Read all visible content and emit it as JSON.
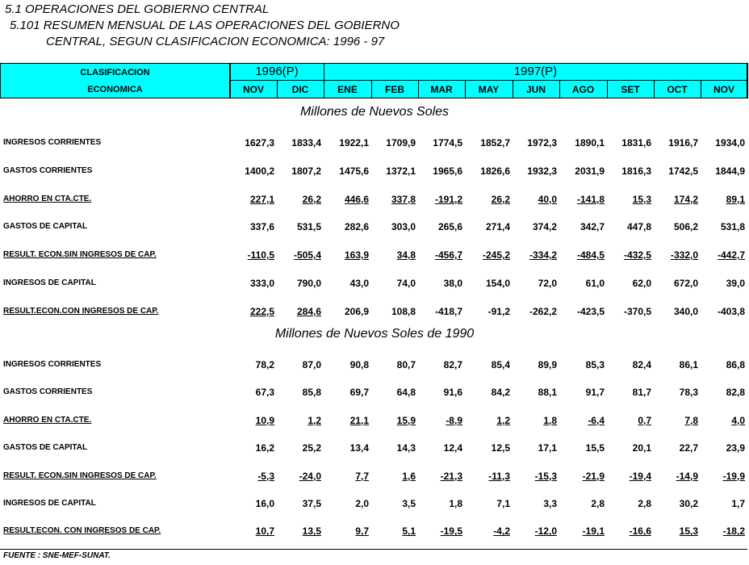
{
  "title": "5.1   OPERACIONES DEL GOBIERNO CENTRAL",
  "subtitle_lines": [
    "5.101 RESUMEN MENSUAL DE LAS OPERACIONES DEL GOBIERNO",
    "CENTRAL, SEGUN CLASIFICACION ECONOMICA: 1996 - 97"
  ],
  "table": {
    "header": {
      "label": [
        "CLASIFICACION",
        "ECONOMICA"
      ],
      "years": [
        {
          "label": "1996(P)",
          "months": [
            "NOV",
            "DIC"
          ]
        },
        {
          "label": "1997(P)",
          "months": [
            "ENE",
            "FEB",
            "MAR",
            "MAY",
            "JUN",
            "AGO",
            "SET",
            "OCT",
            "NOV"
          ]
        }
      ]
    },
    "sections": [
      {
        "title": "Millones de Nuevos Soles",
        "rows": [
          {
            "label": "INGRESOS CORRIENTES",
            "values": [
              "1627,3",
              "1833,4",
              "1922,1",
              "1709,9",
              "1774,5",
              "1852,7",
              "1972,3",
              "1890,1",
              "1831,6",
              "1916,7",
              "1934,0"
            ]
          },
          {
            "label": "GASTOS CORRIENTES",
            "values": [
              "1400,2",
              "1807,2",
              "1475,6",
              "1372,1",
              "1965,6",
              "1826,6",
              "1932,3",
              "2031,9",
              "1816,3",
              "1742,5",
              "1844,9"
            ]
          },
          {
            "label": "AHORRO EN CTA.CTE.",
            "values": [
              "227,1",
              "26,2",
              "446,6",
              "337,8",
              "-191,2",
              "26,2",
              "40,0",
              "-141,8",
              "15,3",
              "174,2",
              "89,1"
            ]
          },
          {
            "label": "GASTOS DE CAPITAL",
            "values": [
              "337,6",
              "531,5",
              "282,6",
              "303,0",
              "265,6",
              "271,4",
              "374,2",
              "342,7",
              "447,8",
              "506,2",
              "531,8"
            ]
          },
          {
            "label": "RESULT. ECON.SIN INGRESOS DE CAP.",
            "values": [
              "-110,5",
              "-505,4",
              "163,9",
              "34,8",
              "-456,7",
              "-245,2",
              "-334,2",
              "-484,5",
              "-432,5",
              "-332,0",
              "-442,7"
            ]
          },
          {
            "label": "INGRESOS DE CAPITAL",
            "values": [
              "333,0",
              "790,0",
              "43,0",
              "74,0",
              "38,0",
              "154,0",
              "72,0",
              "61,0",
              "62,0",
              "672,0",
              "39,0"
            ]
          },
          {
            "label": "RESULT.ECON.CON INGRESOS DE CAP.",
            "values": [
              "222,5",
              "284,6",
              "206,9",
              "108,8",
              "-418,7",
              "-91,2",
              "-262,2",
              "-423,5",
              "-370,5",
              "340,0",
              "-403,8"
            ]
          }
        ]
      },
      {
        "title": "Millones de Nuevos Soles de 1990",
        "rows": [
          {
            "label": "INGRESOS CORRIENTES",
            "values": [
              "78,2",
              "87,0",
              "90,8",
              "80,7",
              "82,7",
              "85,4",
              "89,9",
              "85,3",
              "82,4",
              "86,1",
              "86,8"
            ]
          },
          {
            "label": "GASTOS CORRIENTES",
            "values": [
              "67,3",
              "85,8",
              "69,7",
              "64,8",
              "91,6",
              "84,2",
              "88,1",
              "91,7",
              "81,7",
              "78,3",
              "82,8"
            ]
          },
          {
            "label": "AHORRO EN CTA.CTE.",
            "values": [
              "10,9",
              "1,2",
              "21,1",
              "15,9",
              "-8,9",
              "1,2",
              "1,8",
              "-6,4",
              "0,7",
              "7,8",
              "4,0"
            ]
          },
          {
            "label": "GASTOS DE CAPITAL",
            "values": [
              "16,2",
              "25,2",
              "13,4",
              "14,3",
              "12,4",
              "12,5",
              "17,1",
              "15,5",
              "20,1",
              "22,7",
              "23,9"
            ]
          },
          {
            "label": "RESULT. ECON.SIN INGRESOS DE CAP.",
            "values": [
              "-5,3",
              "-24,0",
              "7,7",
              "1,6",
              "-21,3",
              "-11,3",
              "-15,3",
              "-21,9",
              "-19,4",
              "-14,9",
              "-19,9"
            ]
          },
          {
            "label": "INGRESOS DE CAPITAL",
            "values": [
              "16,0",
              "37,5",
              "2,0",
              "3,5",
              "1,8",
              "7,1",
              "3,3",
              "2,8",
              "2,8",
              "30,2",
              "1,7"
            ]
          },
          {
            "label": "RESULT.ECON. CON INGRESOS DE CAP.",
            "values": [
              "10,7",
              "13,5",
              "9,7",
              "5,1",
              "-19,5",
              "-4,2",
              "-12,0",
              "-19,1",
              "-16,6",
              "15,3",
              "-18,2"
            ]
          }
        ]
      }
    ]
  },
  "source": "FUENTE : SNE-MEF-SUNAT."
}
